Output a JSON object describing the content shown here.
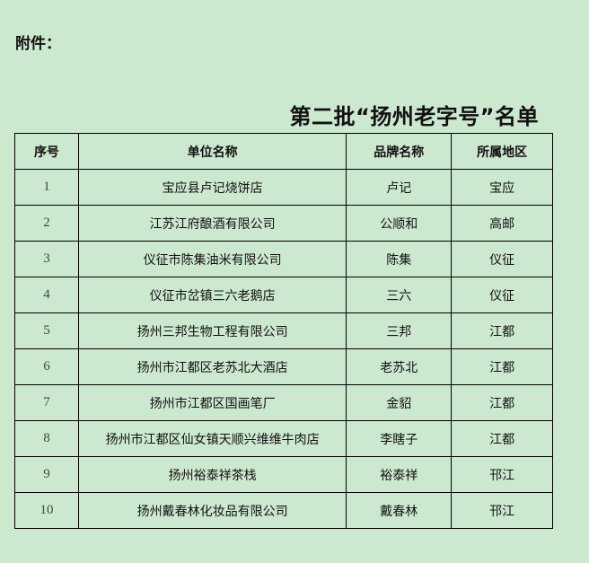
{
  "attachment_label": "附件：",
  "title": "第二批“扬州老字号”名单",
  "table": {
    "headers": [
      "序号",
      "单位名称",
      "品牌名称",
      "所属地区"
    ],
    "rows": [
      [
        "1",
        "宝应县卢记烧饼店",
        "卢记",
        "宝应"
      ],
      [
        "2",
        "江苏江府酿酒有限公司",
        "公顺和",
        "高邮"
      ],
      [
        "3",
        "仪征市陈集油米有限公司",
        "陈集",
        "仪征"
      ],
      [
        "4",
        "仪征市岔镇三六老鹅店",
        "三六",
        "仪征"
      ],
      [
        "5",
        "扬州三邦生物工程有限公司",
        "三邦",
        "江都"
      ],
      [
        "6",
        "扬州市江都区老苏北大酒店",
        "老苏北",
        "江都"
      ],
      [
        "7",
        "扬州市江都区国画笔厂",
        "金貂",
        "江都"
      ],
      [
        "8",
        "扬州市江都区仙女镇天顺兴维维牛肉店",
        "李瞎子",
        "江都"
      ],
      [
        "9",
        "扬州裕泰祥茶栈",
        "裕泰祥",
        "邗江"
      ],
      [
        "10",
        "扬州戴春林化妆品有限公司",
        "戴春林",
        "邗江"
      ]
    ]
  }
}
